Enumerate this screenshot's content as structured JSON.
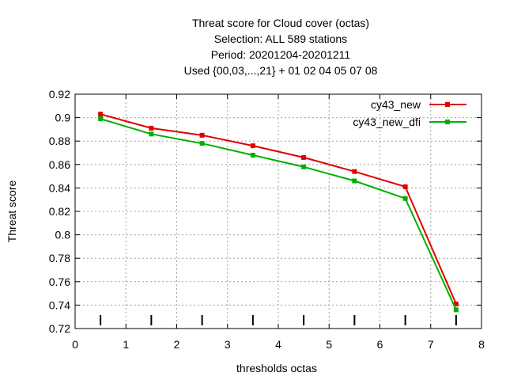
{
  "chart_data": {
    "type": "line",
    "title_lines": [
      "Threat score  for Cloud cover (octas)",
      "Selection: ALL    589 stations",
      "Period: 20201204-20201211",
      "Used {00,03,...,21} + 01 02 04 05 07 08"
    ],
    "xlabel": "thresholds octas",
    "ylabel": "Threat score",
    "xlim": [
      0,
      8
    ],
    "ylim": [
      0.72,
      0.92
    ],
    "x_ticks": [
      0,
      1,
      2,
      3,
      4,
      5,
      6,
      7,
      8
    ],
    "x_tick_labels": [
      "0",
      "1",
      "2",
      "3",
      "4",
      "5",
      "6",
      "7",
      "8"
    ],
    "y_ticks": [
      0.72,
      0.74,
      0.76,
      0.78,
      0.8,
      0.82,
      0.84,
      0.86,
      0.88,
      0.9,
      0.92
    ],
    "y_tick_labels": [
      "0.72",
      "0.74",
      "0.76",
      "0.78",
      "0.8",
      "0.82",
      "0.84",
      "0.86",
      "0.88",
      "0.9",
      "0.92"
    ],
    "grid": true,
    "legend_position": "top-right",
    "threshold_markers_x": [
      0.5,
      1.5,
      2.5,
      3.5,
      4.5,
      5.5,
      6.5,
      7.5
    ],
    "x": [
      0.5,
      1.5,
      2.5,
      3.5,
      4.5,
      5.5,
      6.5,
      7.5
    ],
    "series": [
      {
        "name": "cy43_new",
        "color": "#e00000",
        "values": [
          0.903,
          0.891,
          0.885,
          0.876,
          0.866,
          0.854,
          0.841,
          0.741
        ]
      },
      {
        "name": "cy43_new_dfi",
        "color": "#00b000",
        "values": [
          0.899,
          0.886,
          0.878,
          0.868,
          0.858,
          0.846,
          0.831,
          0.736
        ]
      }
    ]
  }
}
